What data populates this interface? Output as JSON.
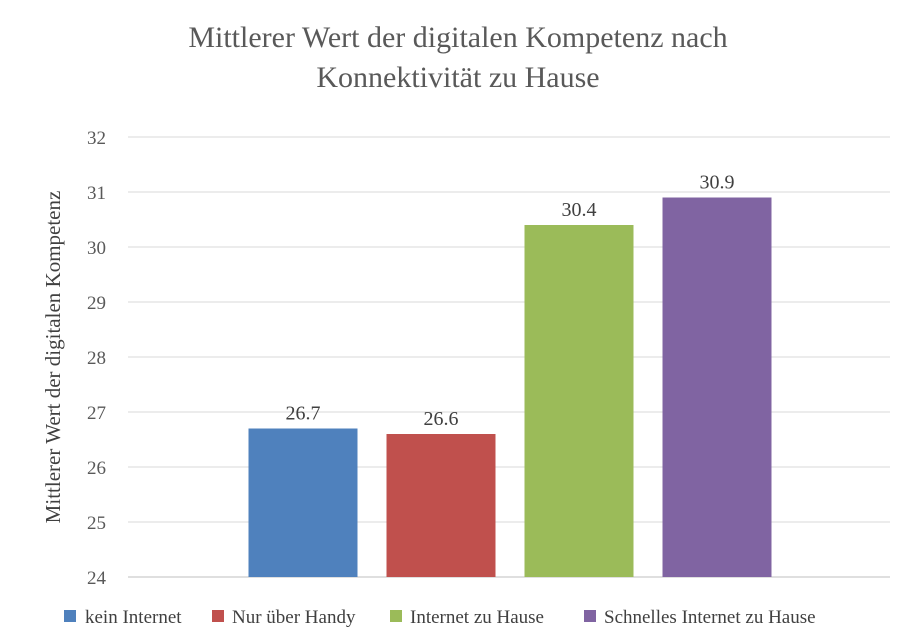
{
  "chart_data": {
    "type": "bar",
    "title": "Mittlerer Wert der digitalen Kompetenz nach Konnektivität zu Hause",
    "title_lines": [
      "Mittlerer Wert der digitalen Kompetenz nach",
      "Konnektivität zu Hause"
    ],
    "xlabel": "",
    "ylabel": "Mittlerer Wert der digitalen Kompetenz",
    "ylim": [
      24,
      32
    ],
    "yticks": [
      "24",
      "25",
      "26",
      "27",
      "28",
      "29",
      "30",
      "31",
      "32"
    ],
    "grid": true,
    "legend_position": "bottom",
    "series": [
      {
        "name": "kein Internet",
        "values": [
          26.7
        ],
        "label": "26.7",
        "color": "#4f81bd"
      },
      {
        "name": "Nur über Handy",
        "values": [
          26.6
        ],
        "label": "26.6",
        "color": "#c0504d"
      },
      {
        "name": "Internet zu Hause",
        "values": [
          30.4
        ],
        "label": "30.4",
        "color": "#9bbb59"
      },
      {
        "name": "Schnelles Internet zu Hause",
        "values": [
          30.9
        ],
        "label": "30.9",
        "color": "#8064a2"
      }
    ]
  }
}
